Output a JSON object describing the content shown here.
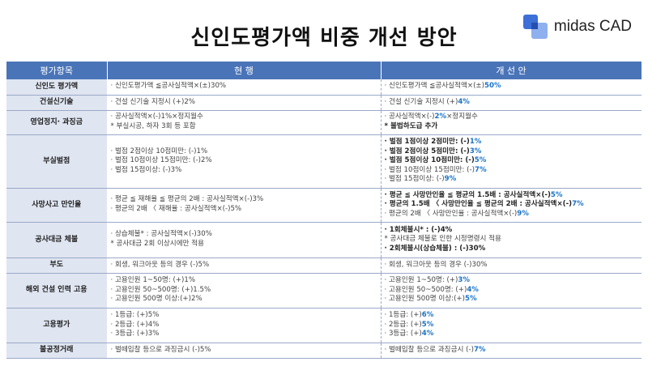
{
  "header": {
    "title": "신인도평가액 비중 개선 방안",
    "logo_text": "midas CAD"
  },
  "table": {
    "col_category": "평가항목",
    "col_current": "현 행",
    "col_proposed": "개 선 안",
    "rows": [
      {
        "category": "신인도 평가액",
        "current": [
          "· 신인도평가액 ≦공사실적액×(±)30%"
        ],
        "proposed": [
          "· 신인도평가액 ≦공사실적액×(±)50%"
        ]
      },
      {
        "category": "건설신기술",
        "current": [
          "· 건설 신기술 지정시 (+)2%"
        ],
        "proposed": [
          "· 건설 신기술 지정시 (+)4%"
        ]
      },
      {
        "category": "영업정지· 과징금",
        "current": [
          "· 공사실적액×(-)1%×정지월수",
          "* 부실시공, 하자 3회 등 포함"
        ],
        "proposed": [
          "· 공사실적액×(-)2%×정지월수",
          "* 불법하도급 추가"
        ]
      },
      {
        "category": "부실벌점",
        "current": [
          "· 벌점 2점이상 10점미만: (-)1%",
          "· 벌점 10점이상 15점미만: (-)2%",
          "· 벌점 15점이상: (-)3%"
        ],
        "proposed": [
          "· 벌점 1점이상 2점미만: (-)1%",
          "· 벌점 2점이상 5점미만: (-)3%",
          "· 벌점 5점이상 10점미만: (-)5%",
          "· 벌점 10점이상 15점미만: (-)7%",
          "· 벌점 15점이상: (-)9%"
        ]
      },
      {
        "category": "사망사고 만인율",
        "current": [
          "· 평균 ≦ 재해율 ≦ 평균의 2배 : 공사실적액×(-)3%",
          "· 평균의 2배 〈 재해율 : 공사실적액×(-)5%"
        ],
        "proposed": [
          "· 평균 ≦ 사망만인율 ≦ 평균의 1.5배 : 공사실적액×(-)5%",
          "· 평균의 1.5배 〈 사망만인율 ≦ 평균의 2배 : 공사실적액×(-)7%",
          "· 평균의 2배 〈 사망만인율 : 공사실적액×(-)9%"
        ]
      },
      {
        "category": "공사대금 체불",
        "current": [
          "· 상습체불* : 공사실적액×(-)30%",
          "* 공사대금 2회 이상시에만 적용"
        ],
        "proposed": [
          "· 1회체불시* : (-)4%",
          "* 공사대금 체불로 인한 시정명령시 적용",
          "· 2회체불시(상습체불) : (-)30%"
        ]
      },
      {
        "category": "부도",
        "current": [
          "· 회생, 워크아웃 등의 경우 (-)5%"
        ],
        "proposed": [
          "· 회생, 워크아웃 등의 경우 (-)30%"
        ]
      },
      {
        "category": "해외 건설 인력 고용",
        "current": [
          "· 고용인원 1~50명: (+)1%",
          "· 고용인원 50~500명: (+)1.5%",
          "· 고용인원 500명 이상:(+)2%"
        ],
        "proposed": [
          "· 고용인원 1~50명: (+)3%",
          "· 고용인원 50~500명: (+)4%",
          "· 고용인원 500명 이상:(+)5%"
        ]
      },
      {
        "category": "고용평가",
        "current": [
          "· 1등급: (+)5%",
          "· 2등급: (+)4%",
          "· 3등급: (+)3%"
        ],
        "proposed": [
          "· 1등급: (+)6%",
          "· 2등급: (+)5%",
          "· 3등급: (+)4%"
        ]
      },
      {
        "category": "불공정거래",
        "current": [
          "· 벌떼입찰 등으로 과징금시 (-)5%"
        ],
        "proposed": [
          "· 벌떼입찰 등으로 과징금시 (-)7%"
        ]
      }
    ]
  },
  "colors": {
    "header_bg": "#4a74b8",
    "category_bg": "#dfe5f1",
    "highlight": "#1a73c9"
  }
}
